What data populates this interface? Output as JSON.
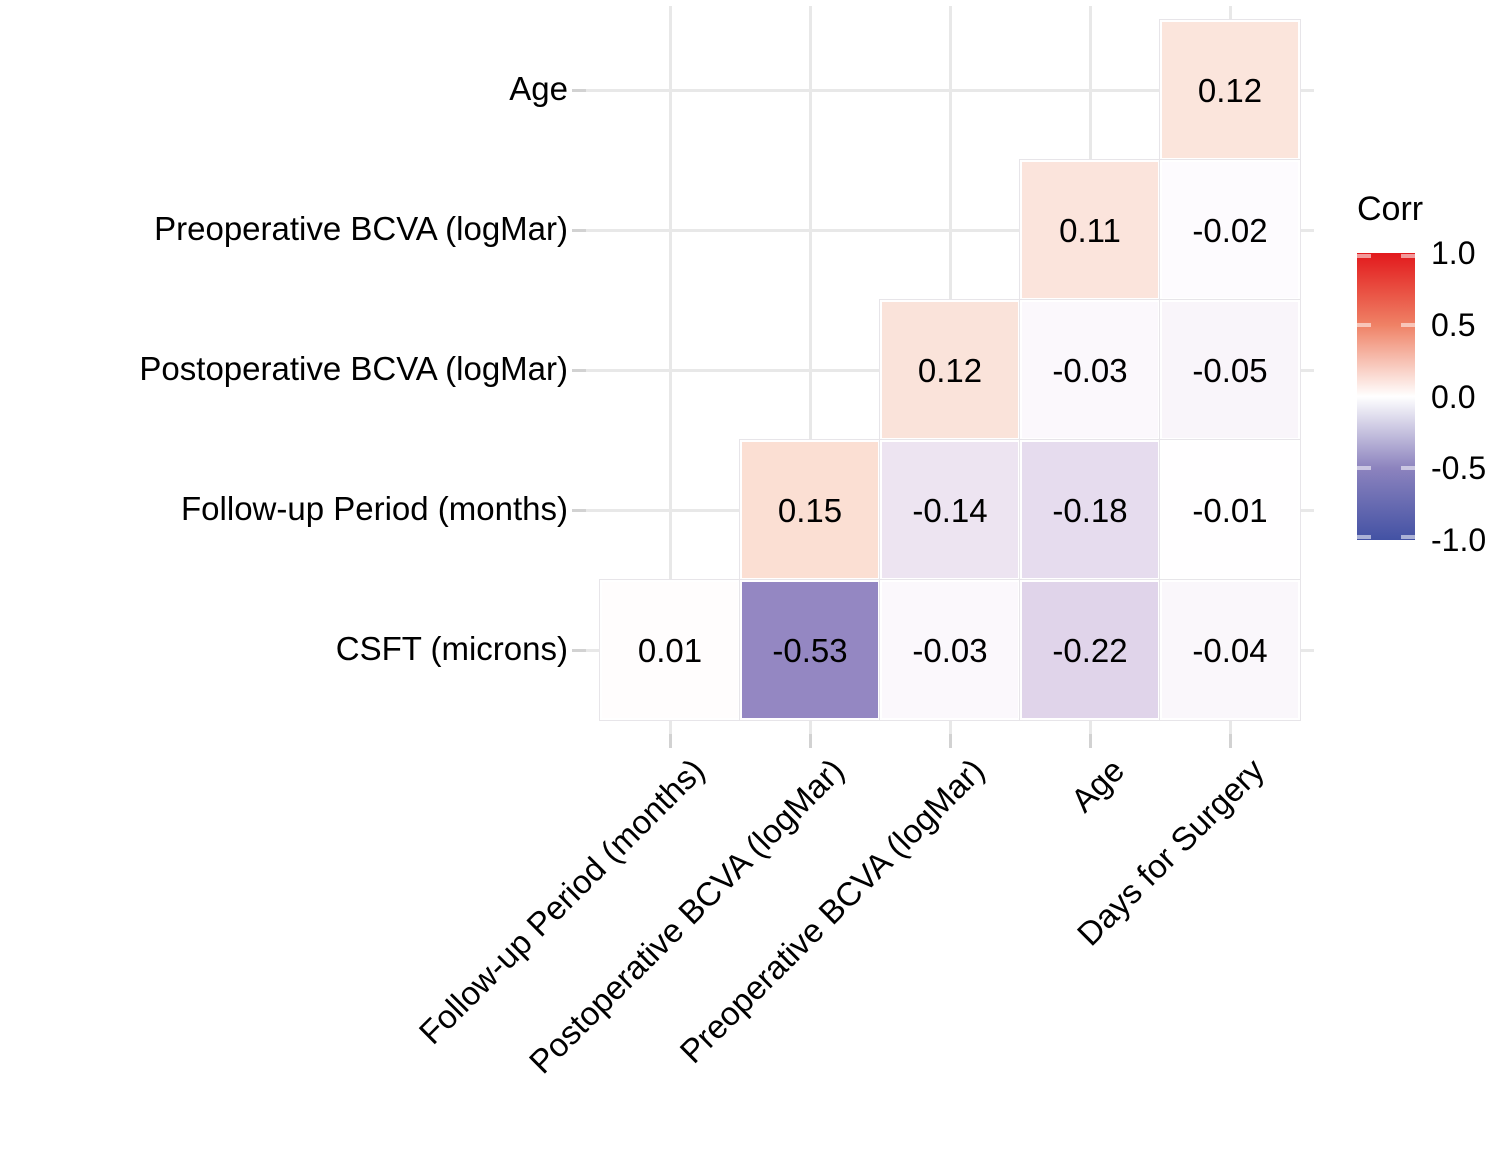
{
  "chart_data": {
    "type": "heatmap",
    "subtype": "correlation-matrix-lower-triangle",
    "rows": [
      "Age",
      "Preoperative BCVA (logMar)",
      "Postoperative BCVA (logMar)",
      "Follow-up Period (months)",
      "CSFT (microns)"
    ],
    "columns": [
      "Follow-up Period (months)",
      "Postoperative BCVA (logMar)",
      "Preoperative BCVA (logMar)",
      "Age",
      "Days for Surgery"
    ],
    "cells": [
      {
        "row": 0,
        "col": 4,
        "value": "0.12",
        "color": "#fbe5dc"
      },
      {
        "row": 1,
        "col": 3,
        "value": "0.11",
        "color": "#fbe4dc"
      },
      {
        "row": 1,
        "col": 4,
        "value": "-0.02",
        "color": "#fdfbfe"
      },
      {
        "row": 2,
        "col": 2,
        "value": "0.12",
        "color": "#fae3da"
      },
      {
        "row": 2,
        "col": 3,
        "value": "-0.03",
        "color": "#fbf8fc"
      },
      {
        "row": 2,
        "col": 4,
        "value": "-0.05",
        "color": "#f9f5fa"
      },
      {
        "row": 3,
        "col": 1,
        "value": "0.15",
        "color": "#fbdfd3"
      },
      {
        "row": 3,
        "col": 2,
        "value": "-0.14",
        "color": "#ede4f1"
      },
      {
        "row": 3,
        "col": 3,
        "value": "-0.18",
        "color": "#e6dcee"
      },
      {
        "row": 3,
        "col": 4,
        "value": "-0.01",
        "color": "#fffeff"
      },
      {
        "row": 4,
        "col": 0,
        "value": "0.01",
        "color": "#fffdfd"
      },
      {
        "row": 4,
        "col": 1,
        "value": "-0.53",
        "color": "#9487c2"
      },
      {
        "row": 4,
        "col": 2,
        "value": "-0.03",
        "color": "#fbf8fc"
      },
      {
        "row": 4,
        "col": 3,
        "value": "-0.22",
        "color": "#e0d4ea"
      },
      {
        "row": 4,
        "col": 4,
        "value": "-0.04",
        "color": "#faf7fb"
      }
    ],
    "legend": {
      "title": "Corr",
      "ticks": [
        "1.0",
        "0.5",
        "0.0",
        "-0.5",
        "-1.0"
      ],
      "range": [
        -1.0,
        1.0
      ],
      "position": "right",
      "colors": {
        "positive_end": "#e2191c",
        "midpoint": "#ffffff",
        "negative_end": "#4352a4"
      }
    },
    "grid": true,
    "value_label_color": "#000000"
  }
}
